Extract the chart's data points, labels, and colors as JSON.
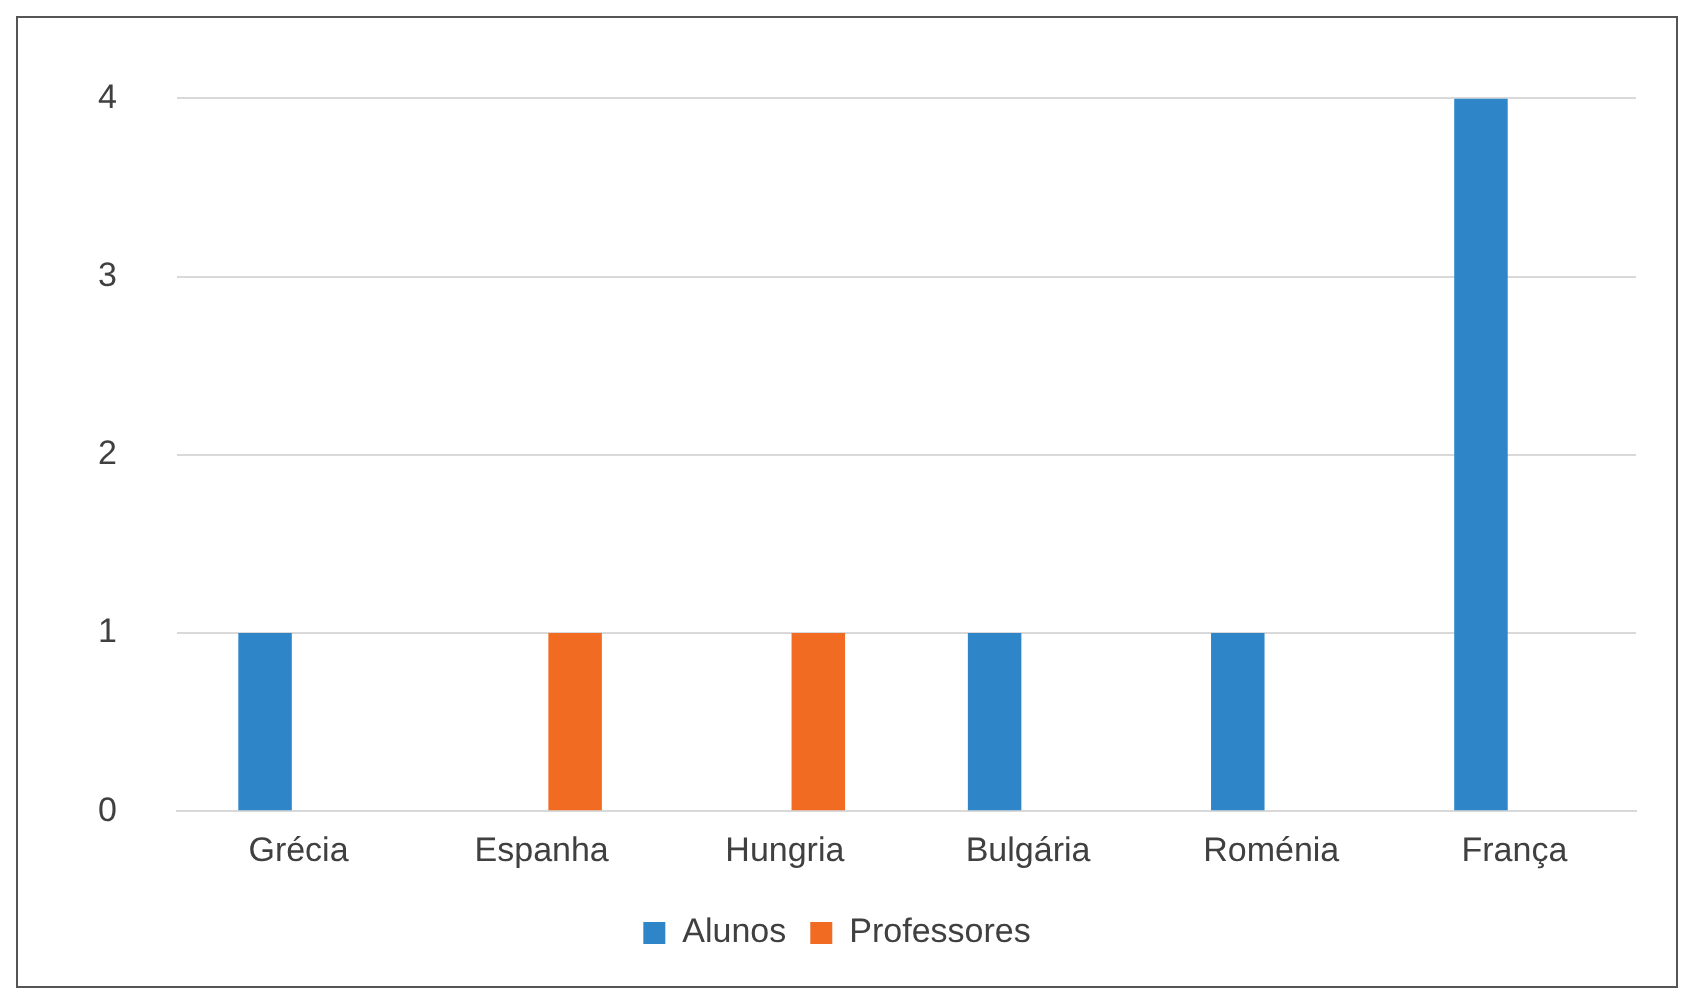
{
  "chart_data": {
    "type": "bar",
    "categories": [
      "Grécia",
      "Espanha",
      "Hungria",
      "Bulgária",
      "Roménia",
      "França"
    ],
    "series": [
      {
        "name": "Alunos",
        "color": "#2e86c8",
        "values": [
          1,
          null,
          null,
          1,
          1,
          4
        ]
      },
      {
        "name": "Professores",
        "color": "#f26b22",
        "values": [
          null,
          1,
          1,
          null,
          null,
          null
        ]
      }
    ],
    "ylim": [
      0,
      4
    ],
    "yticks": [
      0,
      1,
      2,
      3,
      4
    ],
    "grid": "y",
    "legend": "bottom"
  }
}
